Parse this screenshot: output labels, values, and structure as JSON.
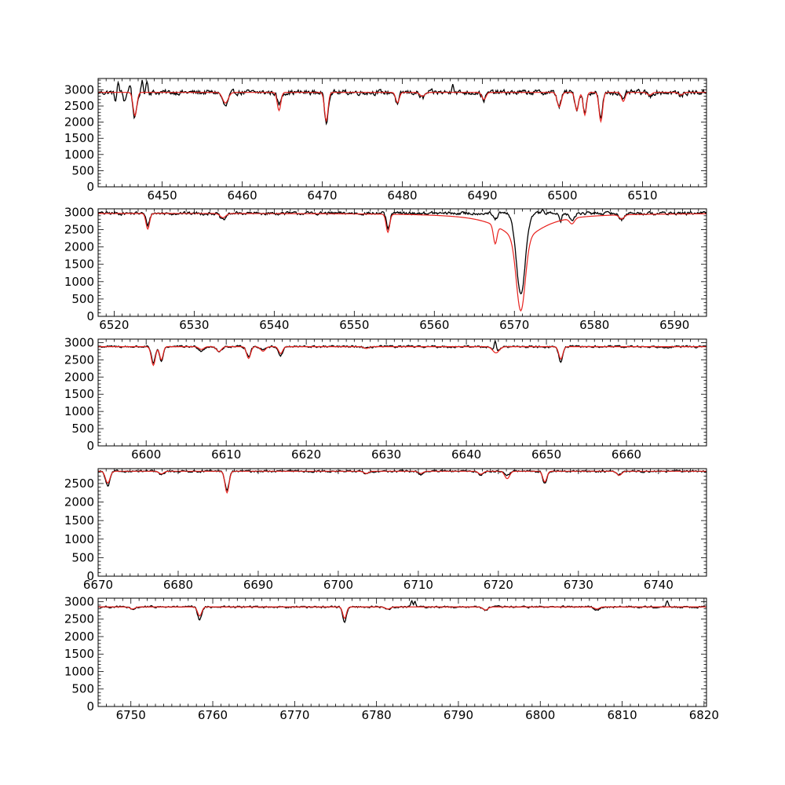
{
  "figure": {
    "background": "#ffffff",
    "observed_color": "#000000",
    "model_color": "#e8221e"
  },
  "chart_data": [
    {
      "type": "line",
      "xlim": [
        6442,
        6518
      ],
      "ylim": [
        0,
        3350
      ],
      "xticks": [
        6450,
        6460,
        6470,
        6480,
        6490,
        6500,
        6510
      ],
      "yticks": [
        0,
        500,
        1000,
        1500,
        2000,
        2500,
        3000
      ],
      "continuum": 2920,
      "lines": [
        {
          "center": 6446.6,
          "depth": 780,
          "width": 0.25,
          "modelDepth": 720,
          "modelWidth": 0.23
        },
        {
          "center": 6457.9,
          "depth": 430,
          "width": 0.35,
          "modelDepth": 330,
          "modelWidth": 0.35
        },
        {
          "center": 6464.6,
          "depth": 380,
          "width": 0.23,
          "modelDepth": 560,
          "modelWidth": 0.22
        },
        {
          "center": 6470.5,
          "depth": 920,
          "width": 0.22,
          "modelDepth": 880,
          "modelWidth": 0.22
        },
        {
          "center": 6479.4,
          "depth": 380,
          "width": 0.22,
          "modelDepth": 320,
          "modelWidth": 0.22
        },
        {
          "center": 6482.5,
          "depth": 180,
          "width": 0.3,
          "modelDepth": 120,
          "modelWidth": 0.3
        },
        {
          "center": 6490.2,
          "depth": 230,
          "width": 0.25,
          "modelDepth": 220,
          "modelWidth": 0.25
        },
        {
          "center": 6499.6,
          "depth": 420,
          "width": 0.25,
          "modelDepth": 450,
          "modelWidth": 0.25
        },
        {
          "center": 6501.8,
          "depth": 520,
          "width": 0.22,
          "modelDepth": 560,
          "modelWidth": 0.22
        },
        {
          "center": 6502.8,
          "depth": 650,
          "width": 0.2,
          "modelDepth": 700,
          "modelWidth": 0.2
        },
        {
          "center": 6504.8,
          "depth": 830,
          "width": 0.22,
          "modelDepth": 900,
          "modelWidth": 0.22
        },
        {
          "center": 6507.6,
          "depth": 260,
          "width": 0.22,
          "modelDepth": 280,
          "modelWidth": 0.22
        },
        {
          "center": 6510.9,
          "depth": 120,
          "width": 0.25,
          "modelDepth": 90,
          "modelWidth": 0.25
        },
        {
          "center": 6514.8,
          "depth": 120,
          "width": 0.25,
          "modelDepth": 80,
          "modelWidth": 0.25
        }
      ],
      "noise": 120,
      "spikes": [
        [
          6444.5,
          320
        ],
        [
          6446.0,
          300
        ],
        [
          6447.5,
          330
        ],
        [
          6448.1,
          360
        ],
        [
          6486.3,
          330
        ]
      ],
      "dips": [
        [
          6444.2,
          -250
        ],
        [
          6445.3,
          -260
        ]
      ]
    },
    {
      "type": "line",
      "xlim": [
        6518,
        6594
      ],
      "ylim": [
        0,
        3100
      ],
      "xticks": [
        6520,
        6530,
        6540,
        6550,
        6560,
        6570,
        6580,
        6590
      ],
      "yticks": [
        0,
        500,
        1000,
        1500,
        2000,
        2500,
        3000
      ],
      "continuum": 2970,
      "lines": [
        {
          "center": 6524.2,
          "depth": 330,
          "width": 0.22,
          "modelDepth": 450,
          "modelWidth": 0.22
        },
        {
          "center": 6533.6,
          "depth": 200,
          "width": 0.35,
          "modelDepth": 120,
          "modelWidth": 0.35
        },
        {
          "center": 6554.2,
          "depth": 480,
          "width": 0.22,
          "modelDepth": 520,
          "modelWidth": 0.22
        },
        {
          "center": 6567.6,
          "depth": 180,
          "width": 0.25,
          "modelDepth": 520,
          "modelWidth": 0.22
        },
        {
          "center": 6577.2,
          "depth": 220,
          "width": 0.3,
          "modelDepth": 160,
          "modelWidth": 0.3
        },
        {
          "center": 6583.4,
          "depth": 180,
          "width": 0.3,
          "modelDepth": 120,
          "modelWidth": 0.3
        }
      ],
      "halpha": {
        "center": 6570.8,
        "depth": 2350,
        "width": 0.55,
        "modelDepth": 2090,
        "modelWidth": 0.55,
        "modelWing": 720,
        "modelWingWidth": 3.2
      },
      "noise": 70,
      "spikes": [
        [
          6554.0,
          90
        ],
        [
          6573.5,
          120
        ]
      ],
      "dips": [
        [
          6575.8,
          -200
        ]
      ]
    },
    {
      "type": "line",
      "xlim": [
        6594,
        6670
      ],
      "ylim": [
        0,
        3100
      ],
      "xticks": [
        6600,
        6610,
        6620,
        6630,
        6640,
        6650,
        6660
      ],
      "yticks": [
        0,
        500,
        1000,
        1500,
        2000,
        2500,
        3000
      ],
      "continuum": 2880,
      "lines": [
        {
          "center": 6600.9,
          "depth": 480,
          "width": 0.25,
          "modelDepth": 540,
          "modelWidth": 0.25
        },
        {
          "center": 6601.9,
          "depth": 420,
          "width": 0.22,
          "modelDepth": 380,
          "modelWidth": 0.22
        },
        {
          "center": 6606.9,
          "depth": 120,
          "width": 0.3,
          "modelDepth": 80,
          "modelWidth": 0.3
        },
        {
          "center": 6609.1,
          "depth": 150,
          "width": 0.3,
          "modelDepth": 140,
          "modelWidth": 0.3
        },
        {
          "center": 6612.8,
          "depth": 280,
          "width": 0.25,
          "modelDepth": 340,
          "modelWidth": 0.25
        },
        {
          "center": 6614.6,
          "depth": 80,
          "width": 0.3,
          "modelDepth": 130,
          "modelWidth": 0.3
        },
        {
          "center": 6616.8,
          "depth": 260,
          "width": 0.25,
          "modelDepth": 200,
          "modelWidth": 0.25
        },
        {
          "center": 6627.5,
          "depth": 60,
          "width": 0.3,
          "modelDepth": 50,
          "modelWidth": 0.3
        },
        {
          "center": 6643.7,
          "depth": 150,
          "width": 0.4,
          "modelDepth": 180,
          "modelWidth": 0.4
        },
        {
          "center": 6651.8,
          "depth": 440,
          "width": 0.25,
          "modelDepth": 360,
          "modelWidth": 0.25
        }
      ],
      "noise": 45,
      "spikes": [
        [
          6643.6,
          340
        ]
      ],
      "dips": []
    },
    {
      "type": "line",
      "xlim": [
        6670,
        6746
      ],
      "ylim": [
        0,
        2900
      ],
      "xticks": [
        6670,
        6680,
        6690,
        6700,
        6710,
        6720,
        6730,
        6740
      ],
      "yticks": [
        0,
        500,
        1000,
        1500,
        2000,
        2500
      ],
      "continuum": 2830,
      "lines": [
        {
          "center": 6671.2,
          "depth": 400,
          "width": 0.28,
          "modelDepth": 320,
          "modelWidth": 0.28
        },
        {
          "center": 6677.9,
          "depth": 100,
          "width": 0.3,
          "modelDepth": 70,
          "modelWidth": 0.3
        },
        {
          "center": 6686.1,
          "depth": 520,
          "width": 0.25,
          "modelDepth": 580,
          "modelWidth": 0.25
        },
        {
          "center": 6703.5,
          "depth": 80,
          "width": 0.3,
          "modelDepth": 60,
          "modelWidth": 0.3
        },
        {
          "center": 6710.3,
          "depth": 90,
          "width": 0.3,
          "modelDepth": 60,
          "modelWidth": 0.3
        },
        {
          "center": 6717.8,
          "depth": 100,
          "width": 0.3,
          "modelDepth": 80,
          "modelWidth": 0.3
        },
        {
          "center": 6721.1,
          "depth": 100,
          "width": 0.3,
          "modelDepth": 200,
          "modelWidth": 0.3
        },
        {
          "center": 6725.8,
          "depth": 330,
          "width": 0.25,
          "modelDepth": 290,
          "modelWidth": 0.25
        },
        {
          "center": 6735.1,
          "depth": 90,
          "width": 0.3,
          "modelDepth": 110,
          "modelWidth": 0.3
        }
      ],
      "noise": 40,
      "spikes": [],
      "dips": []
    },
    {
      "type": "line",
      "xlim": [
        6746,
        6820.3
      ],
      "ylim": [
        0,
        3100
      ],
      "xticks": [
        6750,
        6760,
        6770,
        6780,
        6790,
        6800,
        6810,
        6820
      ],
      "yticks": [
        0,
        500,
        1000,
        1500,
        2000,
        2500,
        3000
      ],
      "continuum": 2850,
      "lines": [
        {
          "center": 6750.2,
          "depth": 90,
          "width": 0.3,
          "modelDepth": 60,
          "modelWidth": 0.3
        },
        {
          "center": 6758.4,
          "depth": 370,
          "width": 0.25,
          "modelDepth": 260,
          "modelWidth": 0.25
        },
        {
          "center": 6776.1,
          "depth": 430,
          "width": 0.22,
          "modelDepth": 330,
          "modelWidth": 0.22
        },
        {
          "center": 6781.4,
          "depth": 80,
          "width": 0.3,
          "modelDepth": 60,
          "modelWidth": 0.3
        },
        {
          "center": 6793.3,
          "depth": 90,
          "width": 0.3,
          "modelDepth": 90,
          "modelWidth": 0.3
        },
        {
          "center": 6806.9,
          "depth": 90,
          "width": 0.3,
          "modelDepth": 60,
          "modelWidth": 0.3
        }
      ],
      "noise": 40,
      "spikes": [
        [
          6784.3,
          180
        ],
        [
          6784.7,
          160
        ],
        [
          6815.5,
          150
        ]
      ],
      "dips": []
    }
  ]
}
